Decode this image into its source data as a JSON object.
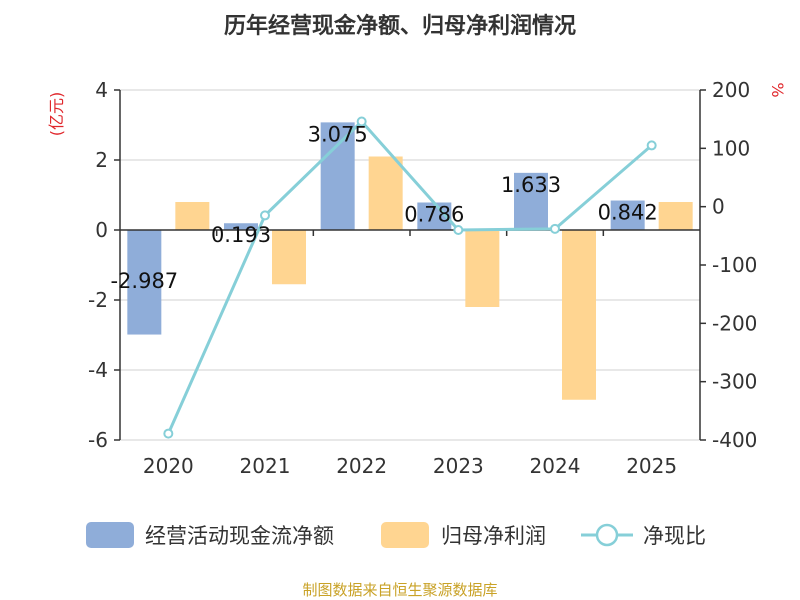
{
  "chart_data": {
    "type": "bar+line",
    "title": "历年经营现金净额、归母净利润情况",
    "categories": [
      "2020",
      "2021",
      "2022",
      "2023",
      "2024",
      "2025"
    ],
    "series": [
      {
        "name": "经营活动现金流净额",
        "type": "bar",
        "axis": "left",
        "color": "#8fadd9",
        "values": [
          -2.987,
          0.193,
          3.075,
          0.786,
          1.633,
          0.842
        ],
        "labels": [
          "-2.987",
          "0.193",
          "3.075",
          "0.786",
          "1.633",
          "0.842"
        ]
      },
      {
        "name": "归母净利润",
        "type": "bar",
        "axis": "left",
        "color": "#ffd591",
        "values": [
          0.8,
          -1.55,
          2.1,
          -2.2,
          -4.85,
          0.8
        ]
      },
      {
        "name": "净现比",
        "type": "line",
        "axis": "right",
        "color": "#86cfd8",
        "values": [
          -389,
          -15,
          146,
          -40,
          -38,
          105
        ]
      }
    ],
    "left_axis": {
      "unit": "(亿元)",
      "ylim": [
        -6,
        4
      ],
      "ticks": [
        4,
        2,
        0,
        -2,
        -4,
        -6
      ]
    },
    "right_axis": {
      "unit": "%",
      "ylim": [
        -400,
        200
      ],
      "ticks": [
        200,
        100,
        0,
        -100,
        -200,
        -300,
        -400
      ]
    },
    "legend": {
      "position": "bottom"
    },
    "grid": true,
    "source": "制图数据来自恒生聚源数据库"
  }
}
